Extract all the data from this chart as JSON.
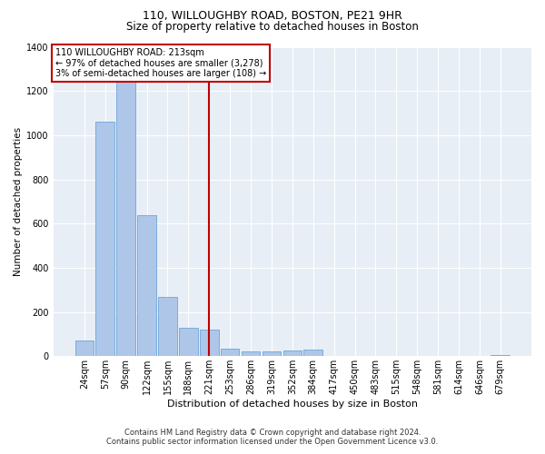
{
  "title_line1": "110, WILLOUGHBY ROAD, BOSTON, PE21 9HR",
  "title_line2": "Size of property relative to detached houses in Boston",
  "xlabel": "Distribution of detached houses by size in Boston",
  "ylabel": "Number of detached properties",
  "footer_line1": "Contains HM Land Registry data © Crown copyright and database right 2024.",
  "footer_line2": "Contains public sector information licensed under the Open Government Licence v3.0.",
  "annotation_line1": "110 WILLOUGHBY ROAD: 213sqm",
  "annotation_line2": "← 97% of detached houses are smaller (3,278)",
  "annotation_line3": "3% of semi-detached houses are larger (108) →",
  "bar_labels": [
    "24sqm",
    "57sqm",
    "90sqm",
    "122sqm",
    "155sqm",
    "188sqm",
    "221sqm",
    "253sqm",
    "286sqm",
    "319sqm",
    "352sqm",
    "384sqm",
    "417sqm",
    "450sqm",
    "483sqm",
    "515sqm",
    "548sqm",
    "581sqm",
    "614sqm",
    "646sqm",
    "679sqm"
  ],
  "bar_values": [
    70,
    1060,
    1240,
    640,
    270,
    130,
    120,
    35,
    20,
    20,
    25,
    28,
    0,
    0,
    0,
    0,
    0,
    0,
    0,
    0,
    5
  ],
  "bar_color": "#aec6e8",
  "bar_edgecolor": "#5b9bd5",
  "vline_index": 6,
  "vline_color": "#c00000",
  "ylim": [
    0,
    1400
  ],
  "yticks": [
    0,
    200,
    400,
    600,
    800,
    1000,
    1200,
    1400
  ],
  "bg_color": "#e8eef6",
  "grid_color": "#ffffff",
  "annotation_box_color": "#c00000",
  "title1_fontsize": 9,
  "title2_fontsize": 8.5,
  "ylabel_fontsize": 7.5,
  "xlabel_fontsize": 8,
  "tick_fontsize": 7,
  "annot_fontsize": 7,
  "footer_fontsize": 6
}
